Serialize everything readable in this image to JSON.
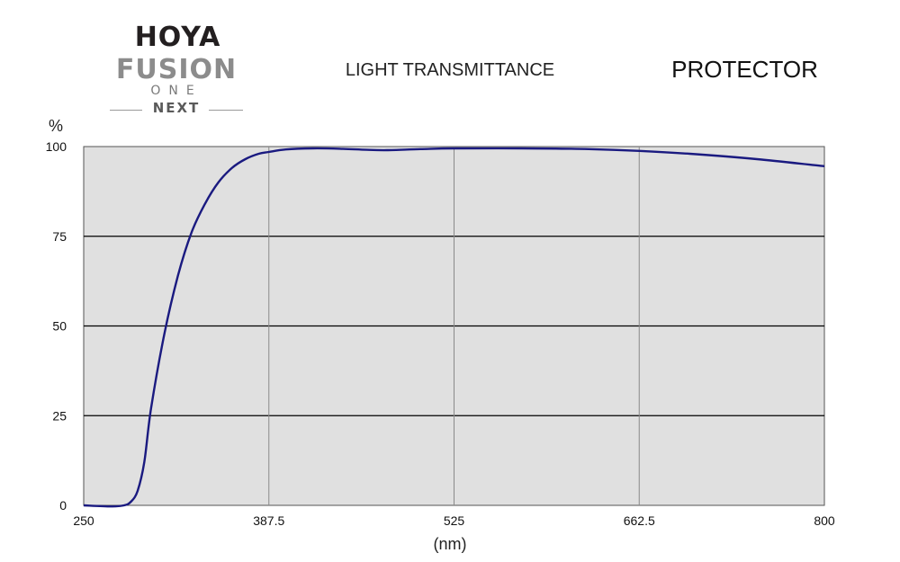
{
  "logo": {
    "brand": "HOYA",
    "line1": "FUSION",
    "line2": "ONE",
    "line3": "NEXT"
  },
  "header": {
    "title": "LIGHT TRANSMITTANCE",
    "product": "PROTECTOR"
  },
  "colors": {
    "plot_background": "#e0e0e0",
    "curve": "#1a1a80",
    "major_grid": "#000000",
    "minor_grid": "#8a8a8a"
  },
  "chart_data": {
    "type": "line",
    "title": "LIGHT TRANSMITTANCE",
    "xlabel": "(nm)",
    "ylabel": "%",
    "xlim": [
      250,
      800
    ],
    "ylim": [
      0,
      100
    ],
    "x_ticks": [
      "250",
      "387.5",
      "525",
      "662.5",
      "800"
    ],
    "y_ticks": [
      "0",
      "25",
      "50",
      "75",
      "100"
    ],
    "x_tick_values": [
      250,
      387.5,
      525,
      662.5,
      800
    ],
    "y_tick_values": [
      0,
      25,
      50,
      75,
      100
    ],
    "grid": true,
    "legend": "none",
    "series": [
      {
        "x": [
          250,
          270,
          280,
          285,
          290,
          295,
          300,
          310,
          320,
          330,
          340,
          350,
          360,
          370,
          380,
          387.5,
          400,
          420,
          440,
          460,
          475,
          500,
          525,
          575,
          625,
          662.5,
          700,
          750,
          800
        ],
        "y": [
          0,
          -0.3,
          0,
          1,
          4,
          12,
          27,
          48,
          64,
          76,
          84,
          90,
          94,
          96.5,
          98,
          98.5,
          99.2,
          99.5,
          99.4,
          99.1,
          99,
          99.3,
          99.5,
          99.5,
          99.3,
          98.8,
          98,
          96.5,
          94.5
        ]
      }
    ]
  }
}
